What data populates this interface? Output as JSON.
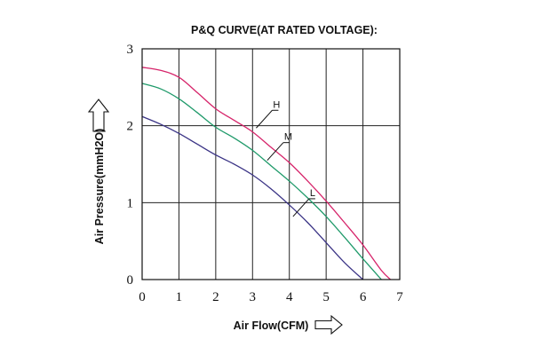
{
  "chart_data": {
    "type": "line",
    "title": "P&Q CURVE(AT RATED VOLTAGE):",
    "xlabel": "Air Flow(CFM)",
    "ylabel": "Air Pressure(mmH2O)",
    "xlim": [
      0,
      7
    ],
    "ylim": [
      0,
      3
    ],
    "x_ticks": [
      "0",
      "1",
      "2",
      "3",
      "4",
      "5",
      "6",
      "7"
    ],
    "y_ticks": [
      "0",
      "1",
      "2",
      "3"
    ],
    "grid": true,
    "legend": "none",
    "series": [
      {
        "name": "H",
        "color": "#d6246a",
        "points": [
          [
            0,
            2.76
          ],
          [
            0.5,
            2.72
          ],
          [
            1,
            2.63
          ],
          [
            1.5,
            2.43
          ],
          [
            2,
            2.22
          ],
          [
            2.5,
            2.07
          ],
          [
            3,
            1.92
          ],
          [
            3.5,
            1.72
          ],
          [
            4,
            1.52
          ],
          [
            4.5,
            1.28
          ],
          [
            5,
            1.02
          ],
          [
            5.5,
            0.74
          ],
          [
            6,
            0.45
          ],
          [
            6.5,
            0.12
          ],
          [
            6.75,
            0.0
          ]
        ],
        "label_at": [
          3.1,
          1.97
        ]
      },
      {
        "name": "M",
        "color": "#1f9a6a",
        "points": [
          [
            0,
            2.55
          ],
          [
            0.5,
            2.48
          ],
          [
            1,
            2.35
          ],
          [
            1.5,
            2.17
          ],
          [
            2,
            1.98
          ],
          [
            2.5,
            1.84
          ],
          [
            3,
            1.68
          ],
          [
            3.5,
            1.48
          ],
          [
            4,
            1.28
          ],
          [
            4.5,
            1.06
          ],
          [
            5,
            0.82
          ],
          [
            5.5,
            0.55
          ],
          [
            6,
            0.27
          ],
          [
            6.5,
            0.0
          ]
        ],
        "label_at": [
          3.4,
          1.55
        ]
      },
      {
        "name": "L",
        "color": "#3a3385",
        "points": [
          [
            0,
            2.12
          ],
          [
            0.5,
            2.02
          ],
          [
            1,
            1.9
          ],
          [
            1.5,
            1.76
          ],
          [
            2,
            1.62
          ],
          [
            2.5,
            1.5
          ],
          [
            3,
            1.36
          ],
          [
            3.5,
            1.18
          ],
          [
            4,
            0.97
          ],
          [
            4.5,
            0.74
          ],
          [
            5,
            0.48
          ],
          [
            5.5,
            0.22
          ],
          [
            6,
            0.0
          ]
        ],
        "label_at": [
          4.1,
          0.82
        ]
      }
    ]
  }
}
